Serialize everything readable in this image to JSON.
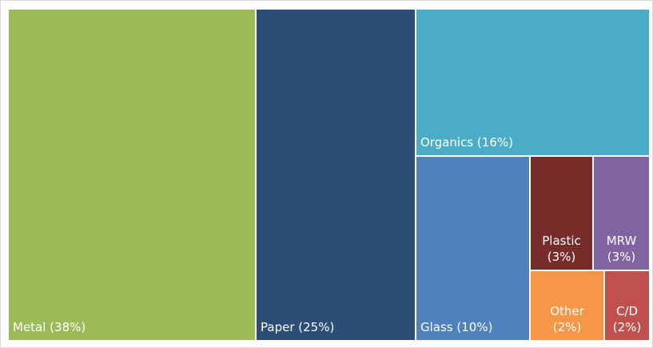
{
  "chart_data": {
    "type": "treemap",
    "title": "",
    "unit": "%",
    "items": [
      {
        "name": "Metal",
        "value": 38,
        "label": "Metal (38%)",
        "color": "#9BBB59"
      },
      {
        "name": "Paper",
        "value": 25,
        "label": "Paper (25%)",
        "color": "#2C4D75"
      },
      {
        "name": "Organics",
        "value": 16,
        "label": "Organics (16%)",
        "color": "#4BACC6"
      },
      {
        "name": "Glass",
        "value": 10,
        "label": "Glass (10%)",
        "color": "#4F81BD"
      },
      {
        "name": "Plastic",
        "value": 3,
        "label_lines": [
          "Plastic",
          "(3%)"
        ],
        "color": "#772C2A"
      },
      {
        "name": "MRW",
        "value": 3,
        "label_lines": [
          "MRW",
          "(3%)"
        ],
        "color": "#8064A2"
      },
      {
        "name": "Other",
        "value": 2,
        "label_lines": [
          "Other",
          "(2%)"
        ],
        "color": "#F79646"
      },
      {
        "name": "C/D",
        "value": 2,
        "label_lines": [
          "C/D",
          "(2%)"
        ],
        "color": "#C0504D"
      }
    ]
  }
}
